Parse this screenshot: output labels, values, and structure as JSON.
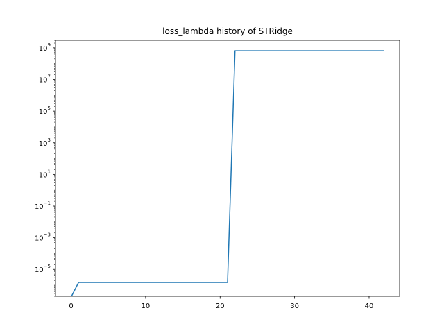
{
  "chart_data": {
    "type": "line",
    "title": "loss_lambda history of STRidge",
    "xlabel": "",
    "ylabel": "",
    "yscale": "log",
    "grid": false,
    "xlim": [
      -2.1,
      44.1
    ],
    "ylim": [
      2e-07,
      3000000000.0
    ],
    "x_ticks": [
      0,
      10,
      20,
      30,
      40
    ],
    "x_tick_labels": [
      "0",
      "10",
      "20",
      "30",
      "40"
    ],
    "y_ticks": [
      1e-05,
      0.001,
      0.1,
      10.0,
      1000.0,
      100000.0,
      10000000.0,
      1000000000.0
    ],
    "y_tick_labels": [
      {
        "base": "10",
        "exp": "−5"
      },
      {
        "base": "10",
        "exp": "−3"
      },
      {
        "base": "10",
        "exp": "−1"
      },
      {
        "base": "10",
        "exp": "1"
      },
      {
        "base": "10",
        "exp": "3"
      },
      {
        "base": "10",
        "exp": "5"
      },
      {
        "base": "10",
        "exp": "7"
      },
      {
        "base": "10",
        "exp": "9"
      }
    ],
    "series": [
      {
        "color": "#1f77b4",
        "x": [
          0,
          1,
          2,
          3,
          4,
          5,
          6,
          7,
          8,
          9,
          10,
          11,
          12,
          13,
          14,
          15,
          16,
          17,
          18,
          19,
          20,
          21,
          22,
          23,
          24,
          25,
          26,
          27,
          28,
          29,
          30,
          31,
          32,
          33,
          34,
          35,
          36,
          37,
          38,
          39,
          40,
          41,
          42
        ],
        "y": [
          0,
          1.5e-06,
          1.5e-06,
          1.5e-06,
          1.5e-06,
          1.5e-06,
          1.5e-06,
          1.5e-06,
          1.5e-06,
          1.5e-06,
          1.5e-06,
          1.5e-06,
          1.5e-06,
          1.5e-06,
          1.5e-06,
          1.5e-06,
          1.5e-06,
          1.5e-06,
          1.5e-06,
          1.5e-06,
          1.5e-06,
          1.5e-06,
          650000000.0,
          650000000.0,
          650000000.0,
          650000000.0,
          650000000.0,
          650000000.0,
          650000000.0,
          650000000.0,
          650000000.0,
          650000000.0,
          650000000.0,
          650000000.0,
          650000000.0,
          650000000.0,
          650000000.0,
          650000000.0,
          650000000.0,
          650000000.0,
          650000000.0,
          650000000.0,
          650000000.0
        ]
      }
    ]
  }
}
